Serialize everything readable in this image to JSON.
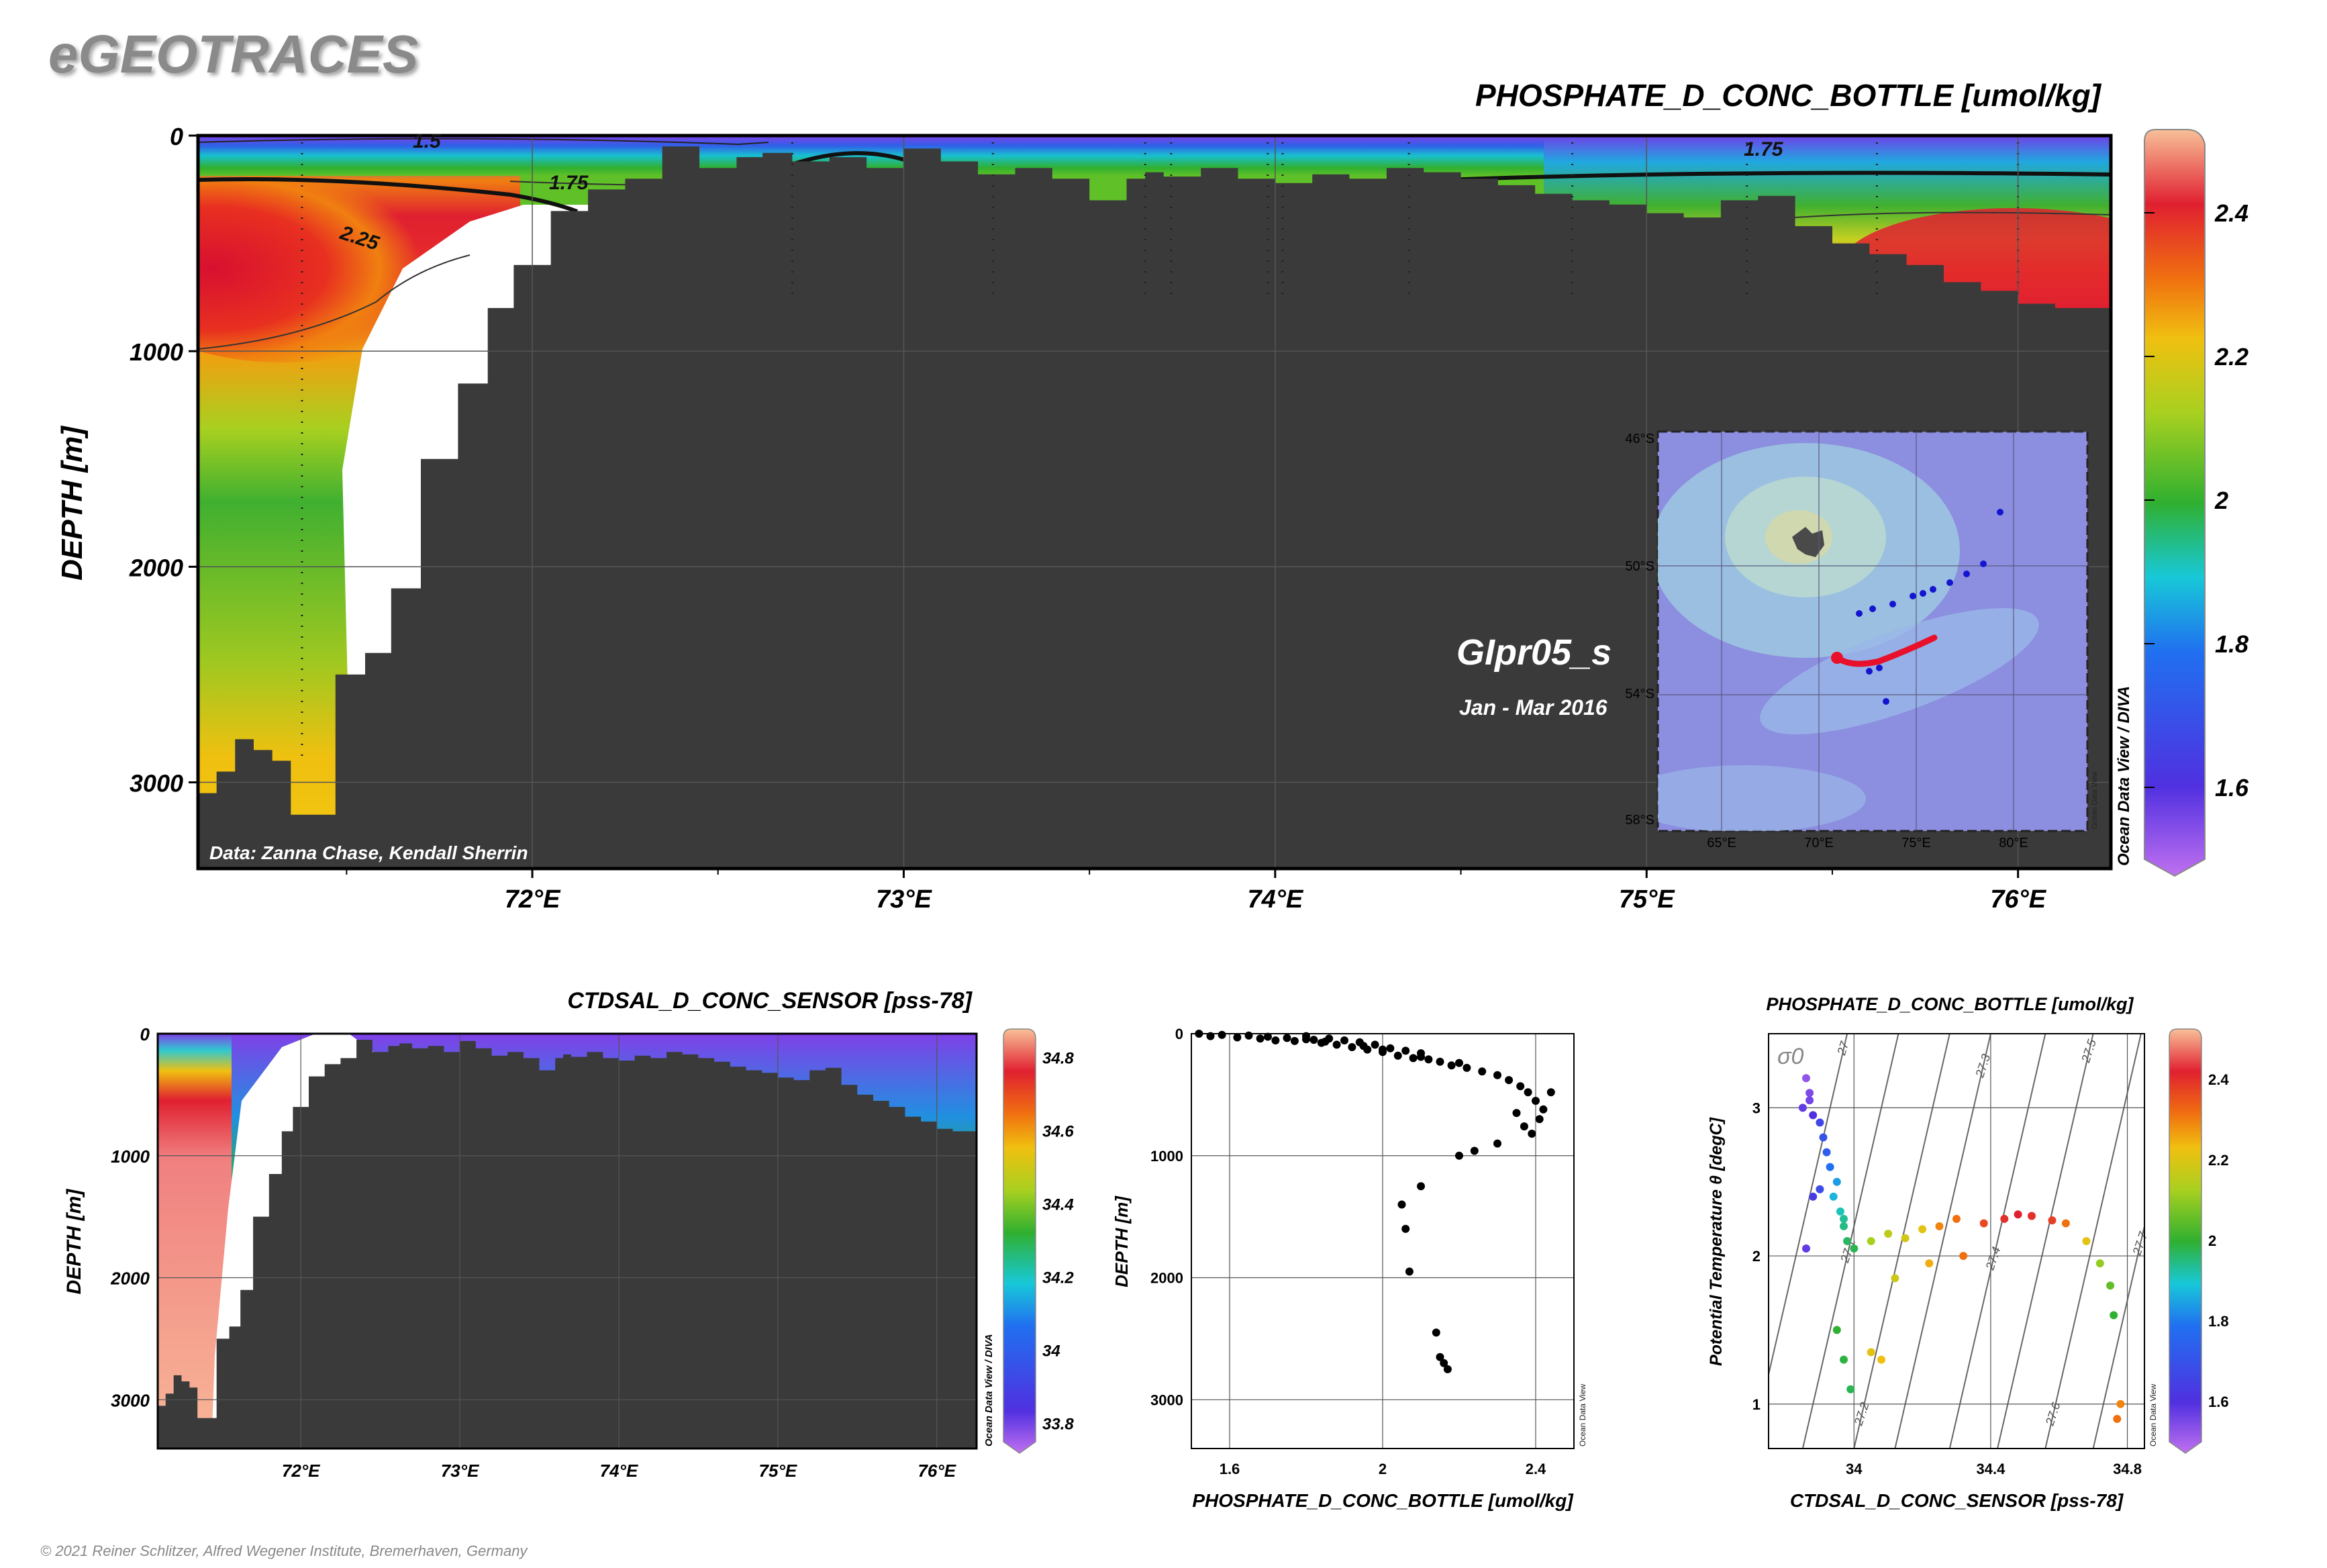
{
  "brand": "eGEOTRACES",
  "copyright": "© 2021 Reiner Schlitzer, Alfred Wegener Institute, Bremerhaven, Germany",
  "colors": {
    "bathymetry": "#3a3a3a",
    "contour": "#111111",
    "inset_ocean": "#8c8ee0",
    "track_red": "#e8102a",
    "station_blue": "#1515d0"
  },
  "main_section": {
    "title": "PHOSPHATE_D_CONC_BOTTLE [umol/kg]",
    "ylabel": "DEPTH [m]",
    "y_ticks": [
      "0",
      "1000",
      "2000",
      "3000"
    ],
    "x_ticks": [
      "72°E",
      "73°E",
      "74°E",
      "75°E",
      "76°E"
    ],
    "credit": "Data: Zanna Chase, Kendall Sherrin",
    "contour_labels": [
      "1.5",
      "1.75",
      "2.25",
      "1.75"
    ],
    "cruise_name": "GIpr05_s",
    "cruise_period": "Jan - Mar 2016",
    "odv_tag": "Ocean Data View / DIVA",
    "colorbar_ticks": [
      "2.4",
      "2.2",
      "2",
      "1.8",
      "1.6"
    ]
  },
  "inset_map": {
    "lat_labels": [
      "46°S",
      "50°S",
      "54°S",
      "58°S"
    ],
    "lon_labels": [
      "65°E",
      "70°E",
      "75°E",
      "80°E"
    ],
    "odv_tag": "Ocean Data View"
  },
  "sal_section": {
    "title": "CTDSAL_D_CONC_SENSOR [pss-78]",
    "ylabel": "DEPTH [m]",
    "y_ticks": [
      "0",
      "1000",
      "2000",
      "3000"
    ],
    "x_ticks": [
      "72°E",
      "73°E",
      "74°E",
      "75°E",
      "76°E"
    ],
    "odv_tag": "Ocean Data View / DIVA",
    "colorbar_ticks": [
      "34.8",
      "34.6",
      "34.4",
      "34.2",
      "34",
      "33.8"
    ]
  },
  "chart_data": [
    {
      "type": "heatmap",
      "title": "PHOSPHATE_D_CONC_BOTTLE [umol/kg]",
      "xlabel": "",
      "ylabel": "DEPTH [m]",
      "xlim": [
        71.1,
        76.25
      ],
      "ylim": [
        3400,
        0
      ],
      "colorbar_range": [
        1.5,
        2.5
      ],
      "contour_levels": [
        1.5,
        1.75,
        2.25
      ],
      "bathymetry_profile": {
        "lon": [
          71.1,
          71.15,
          71.2,
          71.25,
          71.3,
          71.35,
          71.42,
          71.47,
          71.55,
          71.62,
          71.7,
          71.8,
          71.88,
          71.95,
          72.05,
          72.15,
          72.25,
          72.35,
          72.45,
          72.55,
          72.62,
          72.7,
          72.8,
          72.9,
          73.0,
          73.1,
          73.2,
          73.3,
          73.4,
          73.5,
          73.6,
          73.65,
          73.7,
          73.8,
          73.9,
          74.0,
          74.1,
          74.2,
          74.3,
          74.4,
          74.5,
          74.6,
          74.7,
          74.8,
          74.9,
          75.0,
          75.1,
          75.2,
          75.3,
          75.4,
          75.5,
          75.6,
          75.7,
          75.8,
          75.9,
          76.0,
          76.1,
          76.25
        ],
        "depth": [
          3050,
          2950,
          2800,
          2850,
          2900,
          3150,
          3150,
          2500,
          2400,
          2100,
          1500,
          1150,
          800,
          600,
          350,
          250,
          200,
          50,
          150,
          100,
          80,
          120,
          100,
          150,
          60,
          120,
          180,
          150,
          200,
          300,
          200,
          170,
          190,
          150,
          200,
          220,
          180,
          200,
          150,
          170,
          200,
          230,
          270,
          300,
          320,
          360,
          380,
          300,
          280,
          420,
          500,
          550,
          600,
          680,
          720,
          780,
          800,
          830
        ]
      }
    },
    {
      "type": "heatmap",
      "title": "CTDSAL_D_CONC_SENSOR [pss-78]",
      "xlabel": "",
      "ylabel": "DEPTH [m]",
      "xlim": [
        71.1,
        76.25
      ],
      "ylim": [
        3400,
        0
      ],
      "colorbar_range": [
        33.75,
        34.85
      ]
    },
    {
      "type": "scatter",
      "title": "",
      "xlabel": "PHOSPHATE_D_CONC_BOTTLE [umol/kg]",
      "ylabel": "DEPTH [m]",
      "odv_tag": "Ocean Data View",
      "xlim": [
        1.5,
        2.5
      ],
      "ylim": [
        3400,
        0
      ],
      "x_ticks": [
        "1.6",
        "2",
        "2.4"
      ],
      "y_ticks": [
        "0",
        "1000",
        "2000",
        "3000"
      ],
      "points": [
        [
          1.52,
          0
        ],
        [
          1.55,
          20
        ],
        [
          1.58,
          10
        ],
        [
          1.62,
          30
        ],
        [
          1.65,
          15
        ],
        [
          1.68,
          40
        ],
        [
          1.7,
          25
        ],
        [
          1.72,
          55
        ],
        [
          1.75,
          35
        ],
        [
          1.77,
          60
        ],
        [
          1.8,
          20
        ],
        [
          1.82,
          50
        ],
        [
          1.84,
          75
        ],
        [
          1.86,
          40
        ],
        [
          1.88,
          90
        ],
        [
          1.9,
          55
        ],
        [
          1.92,
          110
        ],
        [
          1.94,
          70
        ],
        [
          1.96,
          130
        ],
        [
          1.98,
          90
        ],
        [
          2.0,
          150
        ],
        [
          2.02,
          120
        ],
        [
          2.04,
          180
        ],
        [
          2.06,
          140
        ],
        [
          2.08,
          200
        ],
        [
          2.1,
          160
        ],
        [
          2.12,
          210
        ],
        [
          2.15,
          230
        ],
        [
          2.18,
          260
        ],
        [
          2.22,
          280
        ],
        [
          2.26,
          310
        ],
        [
          2.3,
          340
        ],
        [
          2.33,
          380
        ],
        [
          2.36,
          430
        ],
        [
          2.38,
          480
        ],
        [
          2.4,
          550
        ],
        [
          2.42,
          620
        ],
        [
          2.44,
          480
        ],
        [
          2.41,
          700
        ],
        [
          2.37,
          760
        ],
        [
          2.35,
          650
        ],
        [
          2.39,
          820
        ],
        [
          2.3,
          900
        ],
        [
          2.24,
          960
        ],
        [
          2.2,
          1000
        ],
        [
          2.1,
          1250
        ],
        [
          2.05,
          1400
        ],
        [
          2.06,
          1600
        ],
        [
          2.07,
          1950
        ],
        [
          2.14,
          2450
        ],
        [
          2.15,
          2650
        ],
        [
          2.16,
          2700
        ],
        [
          2.17,
          2750
        ],
        [
          1.8,
          45
        ],
        [
          1.85,
          65
        ],
        [
          1.95,
          100
        ],
        [
          2.0,
          130
        ],
        [
          2.1,
          190
        ],
        [
          2.2,
          240
        ]
      ]
    },
    {
      "type": "scatter",
      "title": "PHOSPHATE_D_CONC_BOTTLE [umol/kg]",
      "xlabel": "CTDSAL_D_CONC_SENSOR [pss-78]",
      "ylabel": "Potential Temperature θ [degC]",
      "odv_tag": "Ocean Data View",
      "sigma_label": "σ0",
      "xlim": [
        33.75,
        34.85
      ],
      "ylim": [
        0.7,
        3.5
      ],
      "x_ticks": [
        "34",
        "34.4",
        "34.8"
      ],
      "y_ticks": [
        "1",
        "2",
        "3"
      ],
      "isopycnal_labels": [
        "27",
        "27.1",
        "27.2",
        "27.3",
        "27.4",
        "27.5",
        "27.6",
        "27.7"
      ],
      "colorbar_range": [
        1.5,
        2.5
      ],
      "colorbar_ticks": [
        "2.4",
        "2.2",
        "2",
        "1.8",
        "1.6"
      ],
      "points": [
        [
          33.86,
          3.2,
          1.55
        ],
        [
          33.87,
          3.1,
          1.57
        ],
        [
          33.85,
          3.0,
          1.6
        ],
        [
          33.88,
          2.95,
          1.62
        ],
        [
          33.87,
          3.05,
          1.58
        ],
        [
          33.9,
          2.9,
          1.68
        ],
        [
          33.91,
          2.8,
          1.72
        ],
        [
          33.92,
          2.7,
          1.75
        ],
        [
          33.93,
          2.6,
          1.8
        ],
        [
          33.95,
          2.5,
          1.85
        ],
        [
          33.94,
          2.4,
          1.88
        ],
        [
          33.96,
          2.3,
          1.92
        ],
        [
          33.97,
          2.2,
          1.95
        ],
        [
          33.98,
          2.1,
          1.97
        ],
        [
          34.0,
          2.05,
          1.98
        ],
        [
          33.97,
          2.25,
          1.94
        ],
        [
          34.05,
          2.1,
          2.12
        ],
        [
          34.1,
          2.15,
          2.15
        ],
        [
          34.15,
          2.12,
          2.18
        ],
        [
          34.2,
          2.18,
          2.2
        ],
        [
          34.25,
          2.2,
          2.28
        ],
        [
          34.3,
          2.25,
          2.3
        ],
        [
          34.38,
          2.22,
          2.35
        ],
        [
          34.44,
          2.25,
          2.38
        ],
        [
          34.48,
          2.28,
          2.4
        ],
        [
          34.52,
          2.27,
          2.38
        ],
        [
          34.58,
          2.24,
          2.36
        ],
        [
          34.62,
          2.22,
          2.3
        ],
        [
          34.68,
          2.1,
          2.2
        ],
        [
          34.72,
          1.95,
          2.1
        ],
        [
          34.75,
          1.8,
          2.05
        ],
        [
          34.76,
          1.6,
          2.0
        ],
        [
          34.78,
          1.0,
          2.28
        ],
        [
          34.77,
          0.9,
          2.3
        ],
        [
          33.95,
          1.5,
          2.0
        ],
        [
          33.97,
          1.3,
          1.99
        ],
        [
          33.99,
          1.1,
          1.98
        ],
        [
          34.05,
          1.35,
          2.2
        ],
        [
          34.08,
          1.3,
          2.22
        ],
        [
          34.12,
          1.85,
          2.17
        ],
        [
          34.22,
          1.95,
          2.24
        ],
        [
          34.32,
          2.0,
          2.3
        ],
        [
          33.86,
          2.05,
          1.6
        ],
        [
          33.88,
          2.4,
          1.65
        ],
        [
          33.9,
          2.45,
          1.7
        ]
      ]
    }
  ]
}
